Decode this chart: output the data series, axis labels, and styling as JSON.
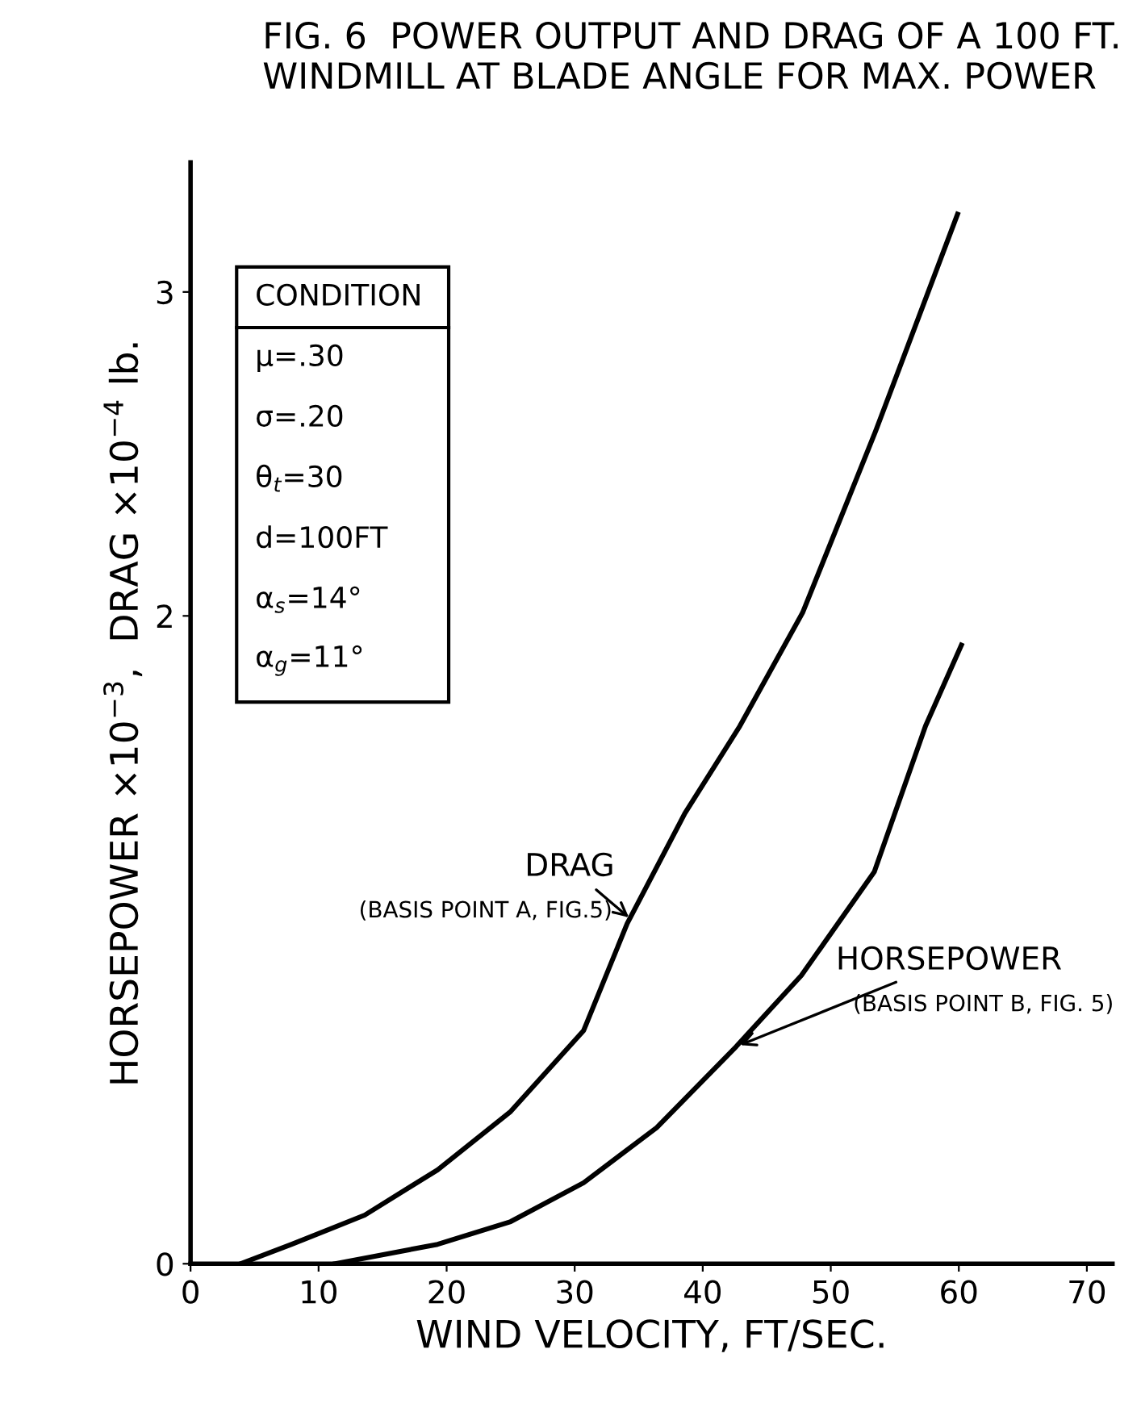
{
  "chart_data": {
    "type": "line",
    "title": "FIG. 6  POWER OUTPUT AND DRAG OF A 100 FT. WINDMILL AT BLADE ANGLE FOR MAX. POWER",
    "xlabel": "WIND VELOCITY, FT/SEC.",
    "ylabel": "HORSEPOWER ×10$^{−3}$,  DRAG ×10$^{−4}$ lb.",
    "series": [
      {
        "color": "#000000",
        "x": [
          3.9,
          7.9,
          13.6,
          19.3,
          25,
          30.7,
          34.1,
          38.6,
          42.9,
          47.8,
          53.5,
          59.9
        ],
        "values": [
          0,
          0.06,
          0.15,
          0.29,
          0.47,
          0.72,
          1.05,
          1.39,
          1.66,
          2.01,
          2.57,
          3.24
        ]
      },
      {
        "color": "#000000",
        "x": [
          11.3,
          19.3,
          25,
          30.7,
          36.4,
          42.6,
          47.7,
          53.4,
          57.4,
          60.2
        ],
        "values": [
          0,
          0.06,
          0.13,
          0.25,
          0.42,
          0.67,
          0.89,
          1.21,
          1.66,
          1.91
        ]
      }
    ],
    "annotations": [
      {
        "text": "DRAG",
        "x": 34.5,
        "y": 1.06
      },
      "(BASIS POINT A, FIG.5)",
      {
        "text": "HORSEPOWER",
        "x": 42.6,
        "y": 0.67
      },
      "(BASIS POINT B, FIG. 5)",
      "CONDITION",
      "μ=.30",
      "σ=.20",
      "θ$_{t}$=30",
      "d=100FT",
      "α$_{s}$=14°",
      "α$_{g}$=11°"
    ],
    "xlim": [
      0,
      72
    ],
    "ylim": [
      0,
      3.4
    ],
    "xticks": [
      0,
      10,
      20,
      30,
      40,
      50,
      60,
      70
    ],
    "yticks": [
      0,
      2,
      3
    ],
    "grid": false,
    "marker": "none",
    "line_style": "solid"
  }
}
